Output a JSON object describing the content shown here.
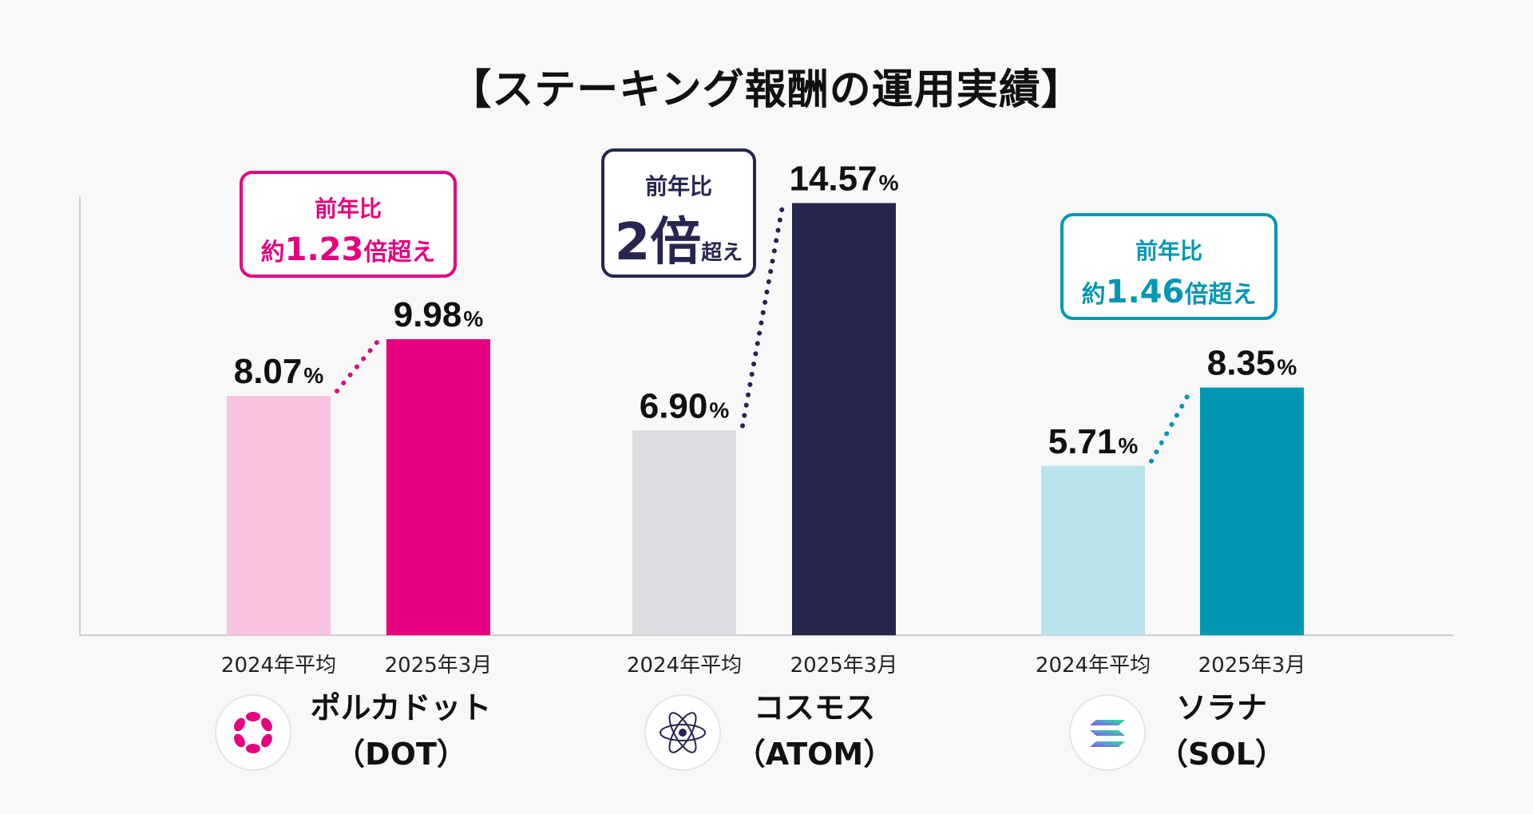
{
  "chart_data": {
    "type": "bar",
    "title": "【ステーキング報酬の運用実績】",
    "ylim": [
      0,
      16
    ],
    "groups": [
      {
        "name": "ポルカドット",
        "ticker": "（DOT）",
        "color_light": "#f7c3e0",
        "color_dark": "#e4007f",
        "categories": [
          "2024年平均",
          "2025年3月"
        ],
        "values": [
          8.07,
          9.98
        ],
        "labels": [
          "8.07",
          "9.98"
        ],
        "unit": "%",
        "badge": {
          "line1": "前年比",
          "prefix": "約",
          "num": "1.23",
          "suffix": "倍超え"
        }
      },
      {
        "name": "コスモス",
        "ticker": "（ATOM）",
        "color_light": "#dcdce0",
        "color_dark": "#262650",
        "categories": [
          "2024年平均",
          "2025年3月"
        ],
        "values": [
          6.9,
          14.57
        ],
        "labels": [
          "6.90",
          "14.57"
        ],
        "unit": "%",
        "badge": {
          "line1": "前年比",
          "prefix": "",
          "num": "2倍",
          "suffix": "超え"
        }
      },
      {
        "name": "ソラナ",
        "ticker": "（SOL）",
        "color_light": "#b9e4ea",
        "color_dark": "#0097b2",
        "categories": [
          "2024年平均",
          "2025年3月"
        ],
        "values": [
          5.71,
          8.35
        ],
        "labels": [
          "5.71",
          "8.35"
        ],
        "unit": "%",
        "badge": {
          "line1": "前年比",
          "prefix": "約",
          "num": "1.46",
          "suffix": "倍超え"
        }
      }
    ]
  }
}
